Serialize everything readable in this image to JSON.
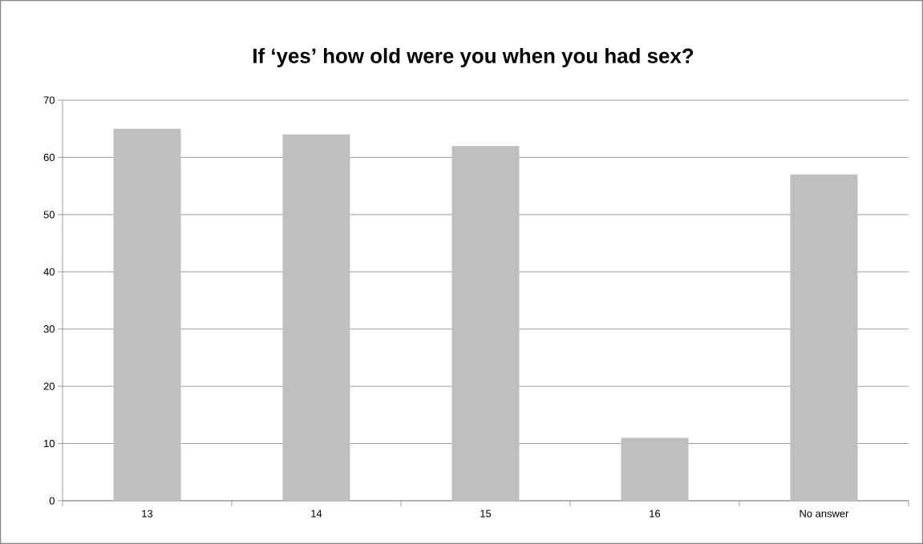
{
  "chart_data": {
    "type": "bar",
    "title": "If ‘yes’ how old were you when you had sex?",
    "categories": [
      "13",
      "14",
      "15",
      "16",
      "No answer"
    ],
    "values": [
      65,
      64,
      62,
      11,
      57
    ],
    "color": "#bfbfbf",
    "ylim": [
      0,
      70
    ],
    "yticks": [
      0,
      10,
      20,
      30,
      40,
      50,
      60,
      70
    ],
    "grid": "y"
  }
}
